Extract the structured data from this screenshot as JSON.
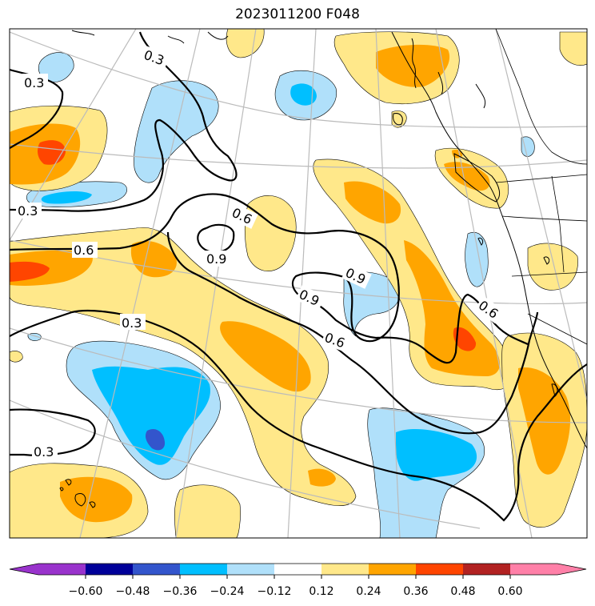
{
  "title": "2023011200 F048",
  "colors": {
    "c_m060": "#9933cc",
    "c_m048": "#000099",
    "c_m036": "#3355cc",
    "c_m024": "#00bfff",
    "c_m012": "#b0e0fa",
    "c_012": "#ffffff",
    "c_024": "#ffe88a",
    "c_036": "#ffa500",
    "c_048": "#ff4500",
    "c_060": "#b22222",
    "c_over": "#ff80a8",
    "contour": "#000000",
    "grid": "#bbbbbb",
    "coast": "#000000"
  },
  "contour_labels": [
    "0.3",
    "0.3",
    "0.3",
    "0.3",
    "0.3",
    "0.6",
    "0.6",
    "0.6",
    "0.6",
    "0.9",
    "0.9",
    "0.9"
  ],
  "colorbar": {
    "ticks": [
      "−0.60",
      "−0.48",
      "−0.36",
      "−0.24",
      "−0.12",
      "0.12",
      "0.24",
      "0.36",
      "0.48",
      "0.60"
    ]
  }
}
